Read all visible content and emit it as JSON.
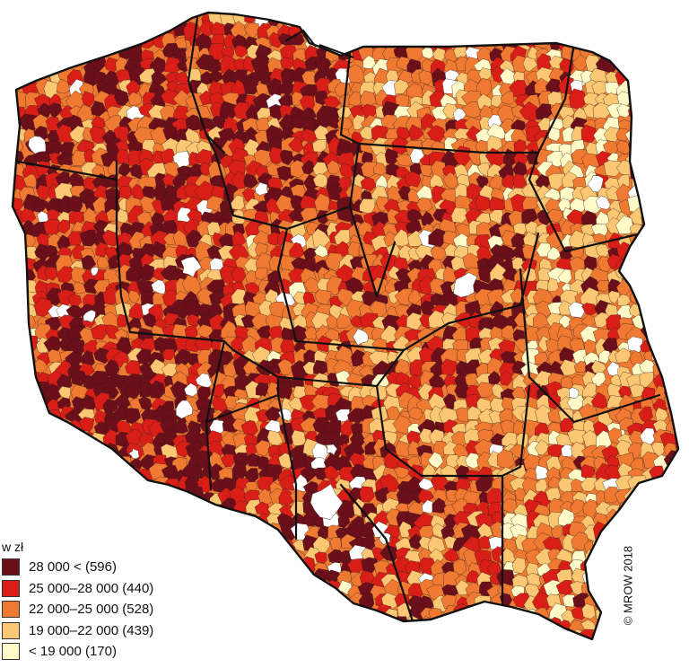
{
  "map": {
    "colors": {
      "c1": "#6b0f1a",
      "c2": "#d91e18",
      "c3": "#f07a32",
      "c4": "#fbc772",
      "c5": "#fffac8",
      "white": "#ffffff",
      "border_dark": "#111111"
    }
  },
  "legend": {
    "title": "w zł",
    "items": [
      {
        "label": "28 000 < (596)",
        "color": "#6b0f1a"
      },
      {
        "label": "25 000–28 000 (440)",
        "color": "#d91e18"
      },
      {
        "label": "22 000–25 000 (528)",
        "color": "#f07a32"
      },
      {
        "label": "19 000–22 000 (439)",
        "color": "#fbc772"
      },
      {
        "label": "< 19 000 (170)",
        "color": "#fffac8"
      }
    ]
  },
  "copyright": "© MROW 2018"
}
